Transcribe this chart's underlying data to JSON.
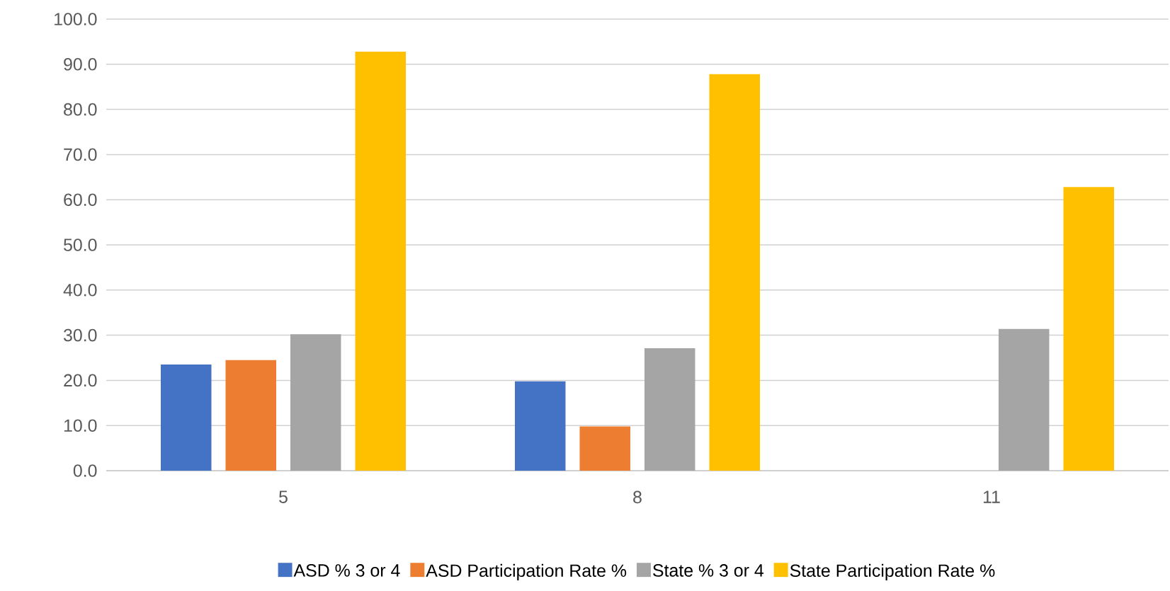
{
  "chart_data": {
    "type": "bar",
    "categories": [
      "5",
      "8",
      "11"
    ],
    "series": [
      {
        "name": "ASD % 3 or 4",
        "color": "#4472c4",
        "values": [
          23.5,
          19.8,
          null
        ]
      },
      {
        "name": "ASD Participation Rate %",
        "color": "#ed7d31",
        "values": [
          24.5,
          9.8,
          null
        ]
      },
      {
        "name": "State % 3 or 4",
        "color": "#a5a5a5",
        "values": [
          30.2,
          27.1,
          31.4
        ]
      },
      {
        "name": "State Participation Rate %",
        "color": "#ffc000",
        "values": [
          92.8,
          87.8,
          62.8
        ]
      }
    ],
    "ylim": [
      0,
      100
    ],
    "yticks": [
      {
        "value": 0,
        "label": "0.0"
      },
      {
        "value": 10,
        "label": "10.0"
      },
      {
        "value": 20,
        "label": "20.0"
      },
      {
        "value": 30,
        "label": "30.0"
      },
      {
        "value": 40,
        "label": "40.0"
      },
      {
        "value": 50,
        "label": "50.0"
      },
      {
        "value": 60,
        "label": "60.0"
      },
      {
        "value": 70,
        "label": "70.0"
      },
      {
        "value": 80,
        "label": "80.0"
      },
      {
        "value": 90,
        "label": "90.0"
      },
      {
        "value": 100,
        "label": "100.0"
      }
    ],
    "grid": "y",
    "legend": "bottom"
  }
}
